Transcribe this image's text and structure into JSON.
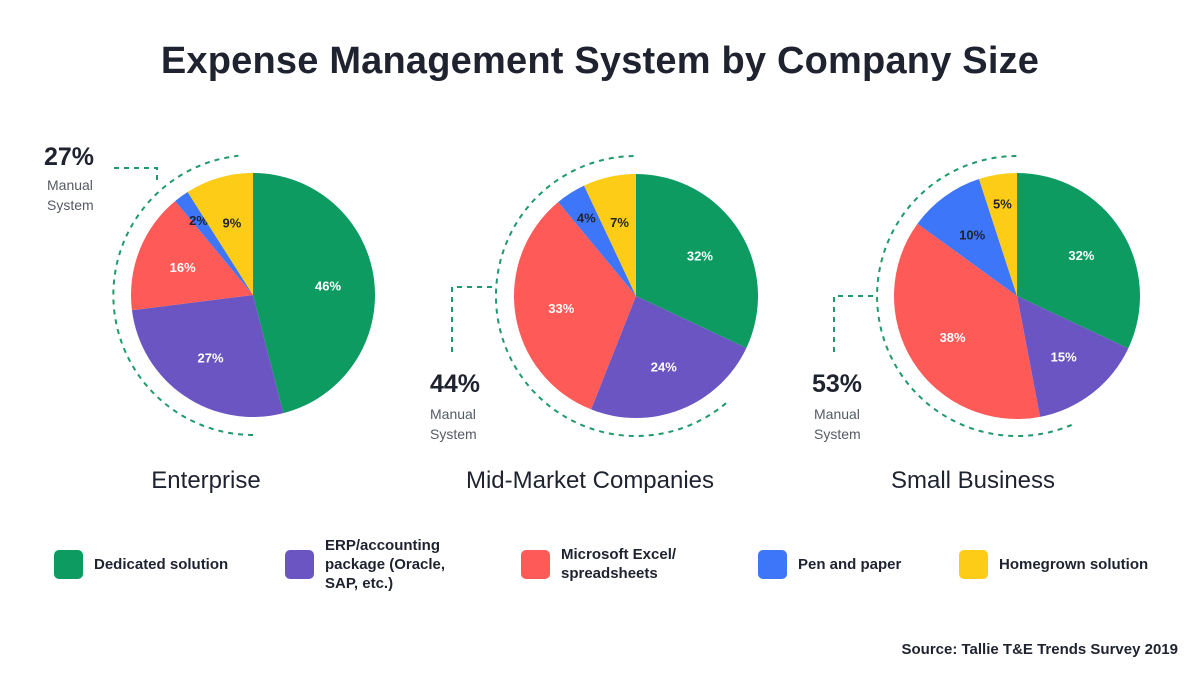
{
  "title": "Expense Management System by Company Size",
  "source": "Source: Tallie T&E Trends Survey 2019",
  "manual_label": [
    "Manual",
    "System"
  ],
  "legend": [
    {
      "key": "dedicated",
      "lines": [
        "Dedicated solution"
      ],
      "color": "#0d9b62"
    },
    {
      "key": "erp",
      "lines": [
        "ERP/accounting",
        "package (Oracle,",
        "SAP, etc.)"
      ],
      "color": "#6a55c2"
    },
    {
      "key": "excel",
      "lines": [
        "Microsoft Excel/",
        "spreadsheets"
      ],
      "color": "#fd5a58"
    },
    {
      "key": "pen",
      "lines": [
        "Pen and paper"
      ],
      "color": "#3d76f8"
    },
    {
      "key": "homegrown",
      "lines": [
        "Homegrown solution"
      ],
      "color": "#fdcc16"
    }
  ],
  "chart_data": [
    {
      "type": "pie",
      "title": "Enterprise",
      "manual_system": "27%",
      "slices": [
        {
          "category": "Dedicated solution",
          "value": 46,
          "label": "46%"
        },
        {
          "category": "ERP/accounting package (Oracle, SAP, etc.)",
          "value": 27,
          "label": "27%"
        },
        {
          "category": "Microsoft Excel/spreadsheets",
          "value": 16,
          "label": "16%"
        },
        {
          "category": "Pen and paper",
          "value": 2,
          "label": "2%"
        },
        {
          "category": "Homegrown solution",
          "value": 9,
          "label": "9%"
        }
      ]
    },
    {
      "type": "pie",
      "title": "Mid-Market Companies",
      "manual_system": "44%",
      "slices": [
        {
          "category": "Dedicated solution",
          "value": 32,
          "label": "32%"
        },
        {
          "category": "ERP/accounting package (Oracle, SAP, etc.)",
          "value": 24,
          "label": "24%"
        },
        {
          "category": "Microsoft Excel/spreadsheets",
          "value": 33,
          "label": "33%"
        },
        {
          "category": "Pen and paper",
          "value": 4,
          "label": "4%"
        },
        {
          "category": "Homegrown solution",
          "value": 7,
          "label": "7%"
        }
      ]
    },
    {
      "type": "pie",
      "title": "Small Business",
      "manual_system": "53%",
      "slices": [
        {
          "category": "Dedicated solution",
          "value": 32,
          "label": "32%"
        },
        {
          "category": "ERP/accounting package (Oracle, SAP, etc.)",
          "value": 15,
          "label": "15%"
        },
        {
          "category": "Microsoft Excel/spreadsheets",
          "value": 38,
          "label": "38%"
        },
        {
          "category": "Pen and paper",
          "value": 10,
          "label": "10%"
        },
        {
          "category": "Homegrown solution",
          "value": 5,
          "label": "5%"
        }
      ]
    }
  ]
}
